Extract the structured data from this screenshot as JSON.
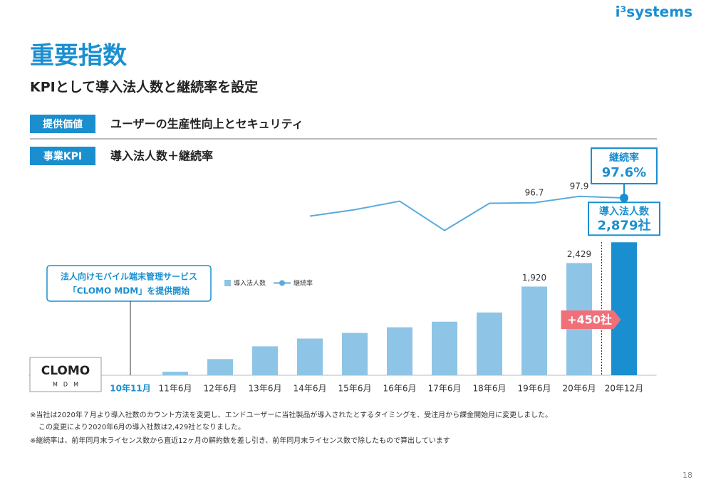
{
  "logo": "i³systems",
  "title": "重要指数",
  "subtitle": "KPIとして導入法人数と継続率を設定",
  "rows": [
    {
      "tag": "提供価値",
      "text": "ユーザーの生産性向上とセキュリティ"
    },
    {
      "tag": "事業KPI",
      "text": "導入法人数＋継続率"
    }
  ],
  "chart_data": {
    "type": "bar",
    "categories": [
      "10年11月",
      "11年6月",
      "12年6月",
      "13年6月",
      "14年6月",
      "15年6月",
      "16年6月",
      "17年6月",
      "18年6月",
      "19年6月",
      "20年6月",
      "20年12月"
    ],
    "ylim": [
      0,
      3500
    ],
    "y2lim": [
      88,
      100
    ],
    "series": [
      {
        "name": "導入法人数",
        "type": "bar",
        "color": "#8ec5e6",
        "highlight_color": "#1a8fd0",
        "values": [
          0,
          76,
          350,
          626,
          794,
          916,
          1038,
          1160,
          1359,
          1920,
          2429,
          2879
        ],
        "value_labels": [
          null,
          null,
          null,
          null,
          null,
          null,
          null,
          null,
          null,
          "1,920",
          "2,429",
          "2,879社"
        ]
      },
      {
        "name": "継続率",
        "type": "line",
        "axis": "y2",
        "color": "#5aaadc",
        "values": [
          null,
          null,
          null,
          null,
          94.2,
          95.4,
          97.0,
          91.5,
          96.6,
          96.7,
          97.9,
          97.6
        ],
        "value_labels": [
          null,
          null,
          null,
          null,
          null,
          null,
          null,
          null,
          null,
          "96.7",
          "97.9",
          "97.6%"
        ]
      }
    ],
    "annotations": [
      "法人向けモバイル端末管理サービス",
      "「CLOMO MDM」を提供開始",
      "+450社"
    ],
    "clomo": [
      "CLOMO",
      "M　D　M"
    ]
  },
  "footnotes": [
    "※当社は2020年７月より導入社数のカウント方法を変更し、エンドユーザーに当社製品が導入されたとするタイミングを、受注月から課金開始月に変更しました。",
    "この変更により2020年6月の導入社数は2,429社となりました。",
    "※継続率は、前年同月末ライセンス数から直近12ヶ月の解約数を差し引き、前年同月末ライセンス数で除したもので算出しています"
  ],
  "page": "18"
}
